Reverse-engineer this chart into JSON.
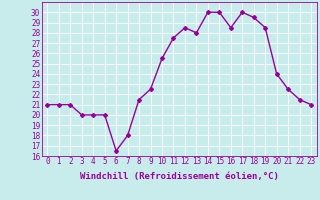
{
  "x": [
    0,
    1,
    2,
    3,
    4,
    5,
    6,
    7,
    8,
    9,
    10,
    11,
    12,
    13,
    14,
    15,
    16,
    17,
    18,
    19,
    20,
    21,
    22,
    23
  ],
  "y": [
    21,
    21,
    21,
    20,
    20,
    20,
    16.5,
    18,
    21.5,
    22.5,
    25.5,
    27.5,
    28.5,
    28,
    30,
    30,
    28.5,
    30,
    29.5,
    28.5,
    24,
    22.5,
    21.5,
    21
  ],
  "line_color": "#990099",
  "marker": "D",
  "marker_size": 2,
  "bg_color": "#c8ecec",
  "grid_color": "#ffffff",
  "xlabel": "Windchill (Refroidissement éolien,°C)",
  "xlabel_color": "#990099",
  "ylim": [
    16,
    31
  ],
  "yticks": [
    16,
    17,
    18,
    19,
    20,
    21,
    22,
    23,
    24,
    25,
    26,
    27,
    28,
    29,
    30
  ],
  "xticks": [
    0,
    1,
    2,
    3,
    4,
    5,
    6,
    7,
    8,
    9,
    10,
    11,
    12,
    13,
    14,
    15,
    16,
    17,
    18,
    19,
    20,
    21,
    22,
    23
  ],
  "tick_color": "#990099",
  "tick_fontsize": 5.5,
  "xlabel_fontsize": 6.5,
  "line_width": 1.0
}
